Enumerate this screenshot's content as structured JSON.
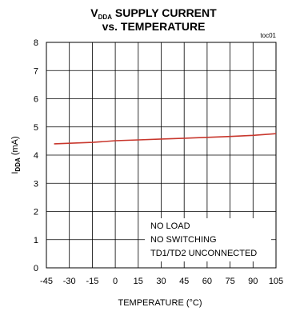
{
  "chart_data": {
    "type": "line",
    "title_line1_prefix": "V",
    "title_line1_sub": "DDA",
    "title_line1_suffix": " SUPPLY CURRENT",
    "title_line2": "vs. TEMPERATURE",
    "figure_id": "toc01",
    "xlabel": "TEMPERATURE (°C)",
    "ylabel_prefix": "I",
    "ylabel_sub": "DDA",
    "ylabel_suffix": " (mA)",
    "xlim": [
      -45,
      105
    ],
    "ylim": [
      0,
      8
    ],
    "x_ticks": [
      -45,
      -30,
      -15,
      0,
      15,
      30,
      45,
      60,
      75,
      90,
      105
    ],
    "y_ticks": [
      0,
      1,
      2,
      3,
      4,
      5,
      6,
      7,
      8
    ],
    "grid": true,
    "series": [
      {
        "color": "#c8372d",
        "x": [
          -40,
          -30,
          -15,
          0,
          15,
          30,
          45,
          60,
          75,
          90,
          105
        ],
        "y": [
          4.4,
          4.42,
          4.45,
          4.51,
          4.54,
          4.57,
          4.6,
          4.63,
          4.66,
          4.7,
          4.76
        ]
      }
    ],
    "annotations": [
      "NO LOAD",
      "NO SWITCHING",
      "TD1/TD2 UNCONNECTED"
    ]
  }
}
